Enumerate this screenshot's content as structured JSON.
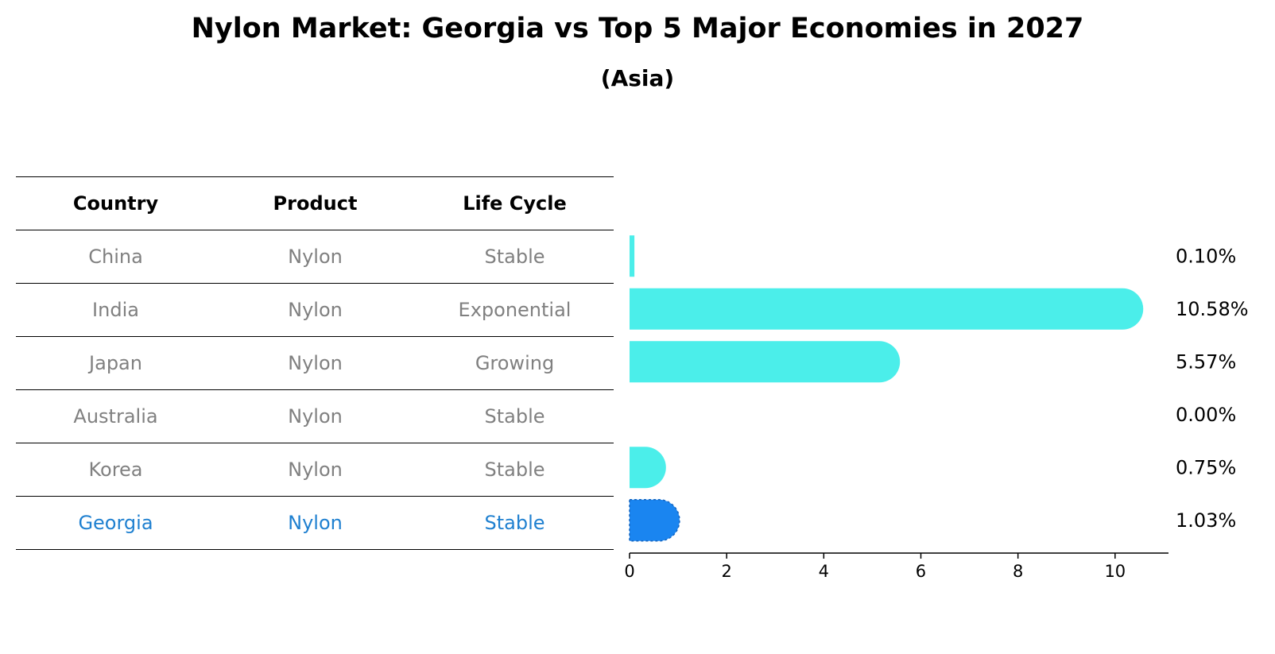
{
  "title": "Nylon Market: Georgia vs Top 5 Major Economies in 2027",
  "subtitle": "(Asia)",
  "table": {
    "headers": [
      "Country",
      "Product",
      "Life Cycle"
    ],
    "rows": [
      {
        "country": "China",
        "product": "Nylon",
        "life_cycle": "Stable"
      },
      {
        "country": "India",
        "product": "Nylon",
        "life_cycle": "Exponential"
      },
      {
        "country": "Japan",
        "product": "Nylon",
        "life_cycle": "Growing"
      },
      {
        "country": "Australia",
        "product": "Nylon",
        "life_cycle": "Stable"
      },
      {
        "country": "Korea",
        "product": "Nylon",
        "life_cycle": "Stable"
      },
      {
        "country": "Georgia",
        "product": "Nylon",
        "life_cycle": "Stable"
      }
    ]
  },
  "colors": {
    "bar": "#4beeea",
    "highlight_bar": "#1a85f0",
    "muted_text": "#808080",
    "highlight_text": "#1f80d0"
  },
  "chart_data": {
    "type": "bar",
    "orientation": "horizontal",
    "categories": [
      "China",
      "India",
      "Japan",
      "Australia",
      "Korea",
      "Georgia"
    ],
    "values": [
      0.1,
      10.58,
      5.57,
      0.0,
      0.75,
      1.03
    ],
    "value_labels": [
      "0.10%",
      "10.58%",
      "5.57%",
      "0.00%",
      "0.75%",
      "1.03%"
    ],
    "highlight": "Georgia",
    "xlim": [
      0,
      11.1
    ],
    "xticks": [
      0,
      2,
      4,
      6,
      8,
      10
    ],
    "title": "Nylon Market: Georgia vs Top 5 Major Economies in 2027",
    "subtitle": "(Asia)",
    "grid": false
  }
}
